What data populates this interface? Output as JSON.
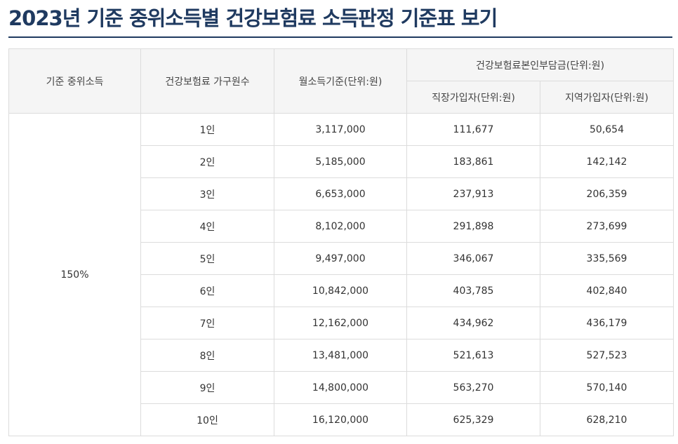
{
  "page_title": "2023년 기준 중위소득별 건강보험료 소득판정 기준표 보기",
  "table": {
    "headers": {
      "median_income": "기준 중위소득",
      "household_size": "건강보험료 가구원수",
      "monthly_income": "월소득기준(단위:원)",
      "premium_group": "건강보험료본인부담금(단위:원)",
      "employee": "직장가입자(단위:원)",
      "regional": "지역가입자(단위:원)"
    },
    "median_income_value": "150%",
    "rows": [
      {
        "household": "1인",
        "monthly_income": "3,117,000",
        "employee": "111,677",
        "regional": "50,654"
      },
      {
        "household": "2인",
        "monthly_income": "5,185,000",
        "employee": "183,861",
        "regional": "142,142"
      },
      {
        "household": "3인",
        "monthly_income": "6,653,000",
        "employee": "237,913",
        "regional": "206,359"
      },
      {
        "household": "4인",
        "monthly_income": "8,102,000",
        "employee": "291,898",
        "regional": "273,699"
      },
      {
        "household": "5인",
        "monthly_income": "9,497,000",
        "employee": "346,067",
        "regional": "335,569"
      },
      {
        "household": "6인",
        "monthly_income": "10,842,000",
        "employee": "403,785",
        "regional": "402,840"
      },
      {
        "household": "7인",
        "monthly_income": "12,162,000",
        "employee": "434,962",
        "regional": "436,179"
      },
      {
        "household": "8인",
        "monthly_income": "13,481,000",
        "employee": "521,613",
        "regional": "527,523"
      },
      {
        "household": "9인",
        "monthly_income": "14,800,000",
        "employee": "563,270",
        "regional": "570,140"
      },
      {
        "household": "10인",
        "monthly_income": "16,120,000",
        "employee": "625,329",
        "regional": "628,210"
      }
    ]
  }
}
